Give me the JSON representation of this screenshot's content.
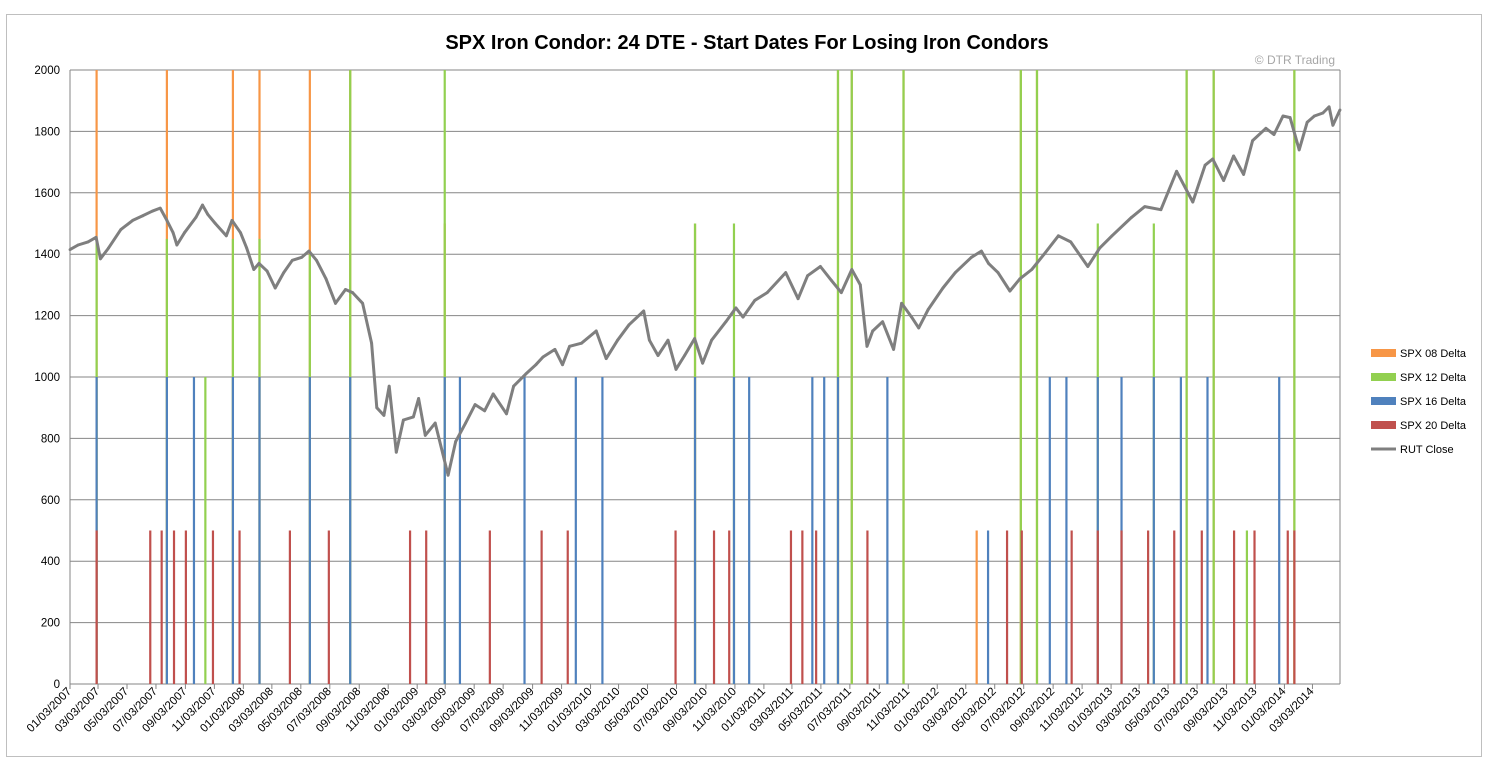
{
  "chart_data": {
    "type": "line",
    "title": "SPX Iron Condor: 24 DTE - Start Dates For Losing Iron Condors",
    "watermark": "© DTR Trading",
    "ylim": [
      0,
      2000
    ],
    "yticks": [
      0,
      200,
      400,
      600,
      800,
      1000,
      1200,
      1400,
      1600,
      1800,
      2000
    ],
    "x_range": [
      "2007-01-03",
      "2014-04-30"
    ],
    "xtick_labels": [
      "01/03/2007",
      "03/03/2007",
      "05/03/2007",
      "07/03/2007",
      "09/03/2007",
      "11/03/2007",
      "01/03/2008",
      "03/03/2008",
      "05/03/2008",
      "07/03/2008",
      "09/03/2008",
      "11/03/2008",
      "01/03/2009",
      "03/03/2009",
      "05/03/2009",
      "07/03/2009",
      "09/03/2009",
      "11/03/2009",
      "01/03/2010",
      "03/03/2010",
      "05/03/2010",
      "07/03/2010",
      "09/03/2010",
      "11/03/2010",
      "01/03/2011",
      "03/03/2011",
      "05/03/2011",
      "07/03/2011",
      "09/03/2011",
      "11/03/2011",
      "01/03/2012",
      "03/03/2012",
      "05/03/2012",
      "07/03/2012",
      "09/03/2012",
      "11/03/2012",
      "01/03/2013",
      "03/03/2013",
      "05/03/2013",
      "07/03/2013",
      "09/03/2013",
      "11/03/2013",
      "01/03/2014",
      "03/03/2014"
    ],
    "grid": true,
    "legend_position": "right",
    "series": [
      {
        "name": "SPX 08 Delta",
        "kind": "column",
        "color": "#f79646",
        "points": [
          [
            "2007-02-28",
            2000
          ],
          [
            "2007-07-26",
            2000
          ],
          [
            "2007-12-12",
            2000
          ],
          [
            "2008-02-06",
            2000
          ],
          [
            "2008-05-22",
            2000
          ],
          [
            "2008-08-15",
            2000
          ],
          [
            "2009-03-02",
            1500
          ],
          [
            "2010-08-11",
            1500
          ],
          [
            "2011-06-08",
            2000
          ],
          [
            "2011-07-07",
            2000
          ],
          [
            "2011-10-24",
            2000
          ],
          [
            "2012-03-26",
            500
          ],
          [
            "2012-06-27",
            2000
          ],
          [
            "2012-07-31",
            2000
          ],
          [
            "2013-06-11",
            2000
          ],
          [
            "2013-08-07",
            2000
          ],
          [
            "2014-01-24",
            2000
          ]
        ]
      },
      {
        "name": "SPX 12 Delta",
        "kind": "column",
        "color": "#92d050",
        "points": [
          [
            "2007-02-28",
            1450
          ],
          [
            "2007-07-26",
            1450
          ],
          [
            "2007-10-15",
            1000
          ],
          [
            "2007-12-12",
            1450
          ],
          [
            "2008-02-06",
            1450
          ],
          [
            "2008-05-22",
            1400
          ],
          [
            "2008-08-15",
            2000
          ],
          [
            "2009-03-02",
            2000
          ],
          [
            "2010-08-11",
            1500
          ],
          [
            "2010-11-01",
            1500
          ],
          [
            "2011-06-08",
            2000
          ],
          [
            "2011-07-07",
            2000
          ],
          [
            "2011-10-24",
            2000
          ],
          [
            "2012-06-27",
            2000
          ],
          [
            "2012-07-31",
            2000
          ],
          [
            "2012-12-06",
            1500
          ],
          [
            "2013-04-03",
            1500
          ],
          [
            "2013-06-11",
            2000
          ],
          [
            "2013-08-07",
            2000
          ],
          [
            "2013-10-16",
            500
          ],
          [
            "2014-01-24",
            2000
          ]
        ]
      },
      {
        "name": "SPX 16 Delta",
        "kind": "column",
        "color": "#4f81bd",
        "points": [
          [
            "2007-02-28",
            1000
          ],
          [
            "2007-07-26",
            1000
          ],
          [
            "2007-09-21",
            1000
          ],
          [
            "2007-12-12",
            1000
          ],
          [
            "2008-02-06",
            1000
          ],
          [
            "2008-05-22",
            1000
          ],
          [
            "2008-08-15",
            1000
          ],
          [
            "2009-03-02",
            1000
          ],
          [
            "2009-04-03",
            1000
          ],
          [
            "2009-08-17",
            1000
          ],
          [
            "2009-12-03",
            1000
          ],
          [
            "2010-01-28",
            1000
          ],
          [
            "2010-08-11",
            1000
          ],
          [
            "2010-11-01",
            1000
          ],
          [
            "2010-12-03",
            1000
          ],
          [
            "2011-04-15",
            1000
          ],
          [
            "2011-05-10",
            1000
          ],
          [
            "2011-06-08",
            1000
          ],
          [
            "2011-09-20",
            1000
          ],
          [
            "2012-04-19",
            500
          ],
          [
            "2012-08-27",
            1000
          ],
          [
            "2012-10-01",
            1000
          ],
          [
            "2012-12-06",
            1000
          ],
          [
            "2013-01-25",
            1000
          ],
          [
            "2013-04-03",
            1000
          ],
          [
            "2013-05-30",
            1000
          ],
          [
            "2013-07-25",
            1000
          ],
          [
            "2013-12-23",
            1000
          ]
        ]
      },
      {
        "name": "SPX 20 Delta",
        "kind": "column",
        "color": "#c0504d",
        "points": [
          [
            "2007-02-28",
            500
          ],
          [
            "2007-06-21",
            500
          ],
          [
            "2007-07-15",
            500
          ],
          [
            "2007-08-10",
            500
          ],
          [
            "2007-09-04",
            500
          ],
          [
            "2007-10-31",
            500
          ],
          [
            "2007-12-26",
            500
          ],
          [
            "2008-04-10",
            500
          ],
          [
            "2008-07-01",
            500
          ],
          [
            "2008-12-19",
            500
          ],
          [
            "2009-01-22",
            500
          ],
          [
            "2009-06-05",
            500
          ],
          [
            "2009-09-22",
            500
          ],
          [
            "2009-11-16",
            500
          ],
          [
            "2010-07-01",
            500
          ],
          [
            "2010-09-20",
            500
          ],
          [
            "2010-10-22",
            500
          ],
          [
            "2011-03-01",
            500
          ],
          [
            "2011-03-25",
            500
          ],
          [
            "2011-04-23",
            500
          ],
          [
            "2011-08-09",
            500
          ],
          [
            "2012-05-29",
            500
          ],
          [
            "2012-06-29",
            500
          ],
          [
            "2012-10-12",
            500
          ],
          [
            "2012-12-06",
            500
          ],
          [
            "2013-01-25",
            500
          ],
          [
            "2013-03-22",
            500
          ],
          [
            "2013-05-16",
            500
          ],
          [
            "2013-07-13",
            500
          ],
          [
            "2013-09-19",
            500
          ],
          [
            "2013-11-01",
            500
          ],
          [
            "2014-01-10",
            500
          ],
          [
            "2014-01-24",
            500
          ]
        ]
      },
      {
        "name": "RUT Close",
        "kind": "line",
        "color": "#7f7f7f",
        "points": [
          [
            "2007-01-03",
            1415
          ],
          [
            "2007-01-20",
            1430
          ],
          [
            "2007-02-10",
            1440
          ],
          [
            "2007-02-27",
            1455
          ],
          [
            "2007-03-08",
            1385
          ],
          [
            "2007-03-25",
            1420
          ],
          [
            "2007-04-20",
            1480
          ],
          [
            "2007-05-15",
            1510
          ],
          [
            "2007-06-05",
            1525
          ],
          [
            "2007-06-25",
            1540
          ],
          [
            "2007-07-12",
            1550
          ],
          [
            "2007-07-26",
            1510
          ],
          [
            "2007-08-08",
            1470
          ],
          [
            "2007-08-16",
            1430
          ],
          [
            "2007-09-01",
            1470
          ],
          [
            "2007-09-25",
            1520
          ],
          [
            "2007-10-09",
            1560
          ],
          [
            "2007-10-20",
            1530
          ],
          [
            "2007-11-05",
            1500
          ],
          [
            "2007-11-28",
            1460
          ],
          [
            "2007-12-10",
            1510
          ],
          [
            "2007-12-28",
            1470
          ],
          [
            "2008-01-10",
            1420
          ],
          [
            "2008-01-25",
            1350
          ],
          [
            "2008-02-05",
            1370
          ],
          [
            "2008-02-22",
            1345
          ],
          [
            "2008-03-10",
            1290
          ],
          [
            "2008-03-28",
            1340
          ],
          [
            "2008-04-15",
            1380
          ],
          [
            "2008-05-05",
            1390
          ],
          [
            "2008-05-20",
            1410
          ],
          [
            "2008-06-05",
            1380
          ],
          [
            "2008-06-25",
            1320
          ],
          [
            "2008-07-15",
            1240
          ],
          [
            "2008-08-05",
            1285
          ],
          [
            "2008-08-20",
            1275
          ],
          [
            "2008-09-10",
            1240
          ],
          [
            "2008-09-29",
            1110
          ],
          [
            "2008-10-10",
            900
          ],
          [
            "2008-10-25",
            875
          ],
          [
            "2008-11-05",
            970
          ],
          [
            "2008-11-20",
            755
          ],
          [
            "2008-12-05",
            860
          ],
          [
            "2008-12-26",
            870
          ],
          [
            "2009-01-06",
            930
          ],
          [
            "2009-01-20",
            810
          ],
          [
            "2009-02-10",
            850
          ],
          [
            "2009-03-09",
            680
          ],
          [
            "2009-03-25",
            790
          ],
          [
            "2009-04-15",
            850
          ],
          [
            "2009-05-05",
            910
          ],
          [
            "2009-05-25",
            890
          ],
          [
            "2009-06-12",
            945
          ],
          [
            "2009-07-10",
            880
          ],
          [
            "2009-07-25",
            970
          ],
          [
            "2009-08-20",
            1010
          ],
          [
            "2009-09-10",
            1040
          ],
          [
            "2009-09-25",
            1065
          ],
          [
            "2009-10-20",
            1090
          ],
          [
            "2009-11-05",
            1040
          ],
          [
            "2009-11-20",
            1100
          ],
          [
            "2009-12-15",
            1110
          ],
          [
            "2010-01-15",
            1150
          ],
          [
            "2010-02-05",
            1060
          ],
          [
            "2010-03-01",
            1120
          ],
          [
            "2010-03-25",
            1170
          ],
          [
            "2010-04-25",
            1215
          ],
          [
            "2010-05-07",
            1120
          ],
          [
            "2010-05-25",
            1070
          ],
          [
            "2010-06-15",
            1120
          ],
          [
            "2010-07-02",
            1025
          ],
          [
            "2010-07-20",
            1070
          ],
          [
            "2010-08-10",
            1125
          ],
          [
            "2010-08-27",
            1045
          ],
          [
            "2010-09-15",
            1120
          ],
          [
            "2010-10-15",
            1180
          ],
          [
            "2010-11-05",
            1225
          ],
          [
            "2010-11-20",
            1195
          ],
          [
            "2010-12-15",
            1250
          ],
          [
            "2011-01-10",
            1275
          ],
          [
            "2011-02-18",
            1340
          ],
          [
            "2011-03-16",
            1255
          ],
          [
            "2011-04-05",
            1330
          ],
          [
            "2011-05-02",
            1360
          ],
          [
            "2011-05-25",
            1315
          ],
          [
            "2011-06-15",
            1275
          ],
          [
            "2011-07-07",
            1350
          ],
          [
            "2011-07-25",
            1300
          ],
          [
            "2011-08-08",
            1100
          ],
          [
            "2011-08-20",
            1150
          ],
          [
            "2011-09-10",
            1180
          ],
          [
            "2011-10-03",
            1090
          ],
          [
            "2011-10-20",
            1240
          ],
          [
            "2011-11-10",
            1195
          ],
          [
            "2011-11-25",
            1160
          ],
          [
            "2011-12-15",
            1220
          ],
          [
            "2012-01-15",
            1290
          ],
          [
            "2012-02-10",
            1340
          ],
          [
            "2012-03-15",
            1390
          ],
          [
            "2012-04-05",
            1410
          ],
          [
            "2012-04-20",
            1370
          ],
          [
            "2012-05-10",
            1340
          ],
          [
            "2012-06-04",
            1280
          ],
          [
            "2012-06-25",
            1320
          ],
          [
            "2012-07-20",
            1350
          ],
          [
            "2012-08-15",
            1400
          ],
          [
            "2012-09-14",
            1460
          ],
          [
            "2012-10-10",
            1440
          ],
          [
            "2012-11-15",
            1360
          ],
          [
            "2012-12-10",
            1420
          ],
          [
            "2013-01-05",
            1460
          ],
          [
            "2013-02-15",
            1520
          ],
          [
            "2013-03-15",
            1555
          ],
          [
            "2013-04-18",
            1545
          ],
          [
            "2013-05-21",
            1670
          ],
          [
            "2013-06-24",
            1570
          ],
          [
            "2013-07-20",
            1690
          ],
          [
            "2013-08-05",
            1710
          ],
          [
            "2013-08-28",
            1640
          ],
          [
            "2013-09-18",
            1720
          ],
          [
            "2013-10-09",
            1660
          ],
          [
            "2013-10-28",
            1770
          ],
          [
            "2013-11-25",
            1810
          ],
          [
            "2013-12-12",
            1790
          ],
          [
            "2013-12-31",
            1850
          ],
          [
            "2014-01-15",
            1845
          ],
          [
            "2014-02-03",
            1740
          ],
          [
            "2014-02-20",
            1830
          ],
          [
            "2014-03-07",
            1850
          ],
          [
            "2014-03-25",
            1860
          ],
          [
            "2014-04-07",
            1880
          ],
          [
            "2014-04-15",
            1820
          ],
          [
            "2014-04-30",
            1870
          ]
        ]
      }
    ]
  }
}
